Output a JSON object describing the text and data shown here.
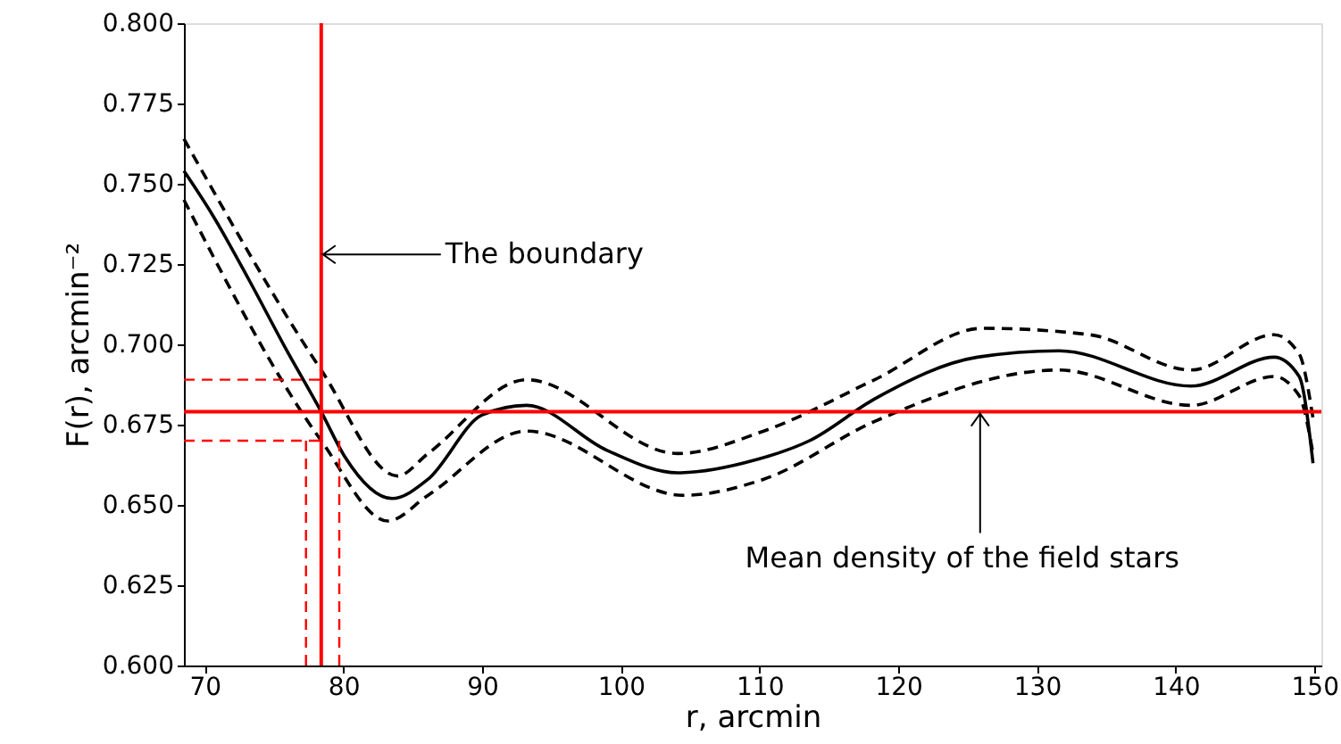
{
  "chart_data": {
    "type": "line",
    "xlabel": "r, arcmin",
    "ylabel": "F(r), arcmin⁻²",
    "xlim": [
      68.5,
      150.5
    ],
    "ylim": [
      0.6,
      0.8
    ],
    "xticks": [
      70,
      80,
      90,
      100,
      110,
      120,
      130,
      140,
      150
    ],
    "yticks": [
      {
        "value": 0.6,
        "label": "0.600"
      },
      0.625,
      {
        "value": 0.65,
        "label": "0.650"
      },
      0.675,
      {
        "value": 0.7,
        "label": "0.700"
      },
      0.725,
      {
        "value": 0.75,
        "label": "0.750"
      },
      0.775,
      {
        "value": 0.8,
        "label": "0.800"
      }
    ],
    "series": [
      {
        "color": "#000000",
        "line_style": "solid",
        "x": [
          68.5,
          70.6,
          73.2,
          75.8,
          78.4,
          80.1,
          83.5,
          86.1,
          90.0,
          93.2,
          99.0,
          104.1,
          109.7,
          113.6,
          118.3,
          125.7,
          131.6,
          141.1,
          147.1,
          148.9,
          149.9
        ],
        "values": [
          0.754,
          0.74,
          0.72,
          0.699,
          0.679,
          0.665,
          0.652,
          0.658,
          0.678,
          0.681,
          0.667,
          0.66,
          0.664,
          0.67,
          0.683,
          0.696,
          0.698,
          0.687,
          0.696,
          0.69,
          0.663
        ]
      },
      {
        "color": "#000000",
        "line_style": "dashed",
        "x": [
          68.5,
          78.4,
          83.9,
          86.1,
          93.2,
          104.1,
          110.3,
          118.3,
          126.1,
          133.8,
          141.1,
          147.1,
          148.9,
          149.9
        ],
        "values": [
          0.764,
          0.692,
          0.659,
          0.666,
          0.689,
          0.666,
          0.673,
          0.689,
          0.705,
          0.703,
          0.692,
          0.703,
          0.697,
          0.677
        ]
      },
      {
        "color": "#000000",
        "line_style": "dashed",
        "x": [
          68.5,
          78.4,
          83.2,
          86.1,
          93.2,
          104.5,
          110.3,
          118.3,
          131.6,
          141.1,
          147.1,
          148.9,
          149.9
        ],
        "values": [
          0.745,
          0.67,
          0.645,
          0.653,
          0.673,
          0.653,
          0.658,
          0.676,
          0.692,
          0.681,
          0.69,
          0.684,
          0.666
        ]
      }
    ],
    "ref_lines": [
      {
        "axis": "y",
        "value": 0.679,
        "color": "#ff0000",
        "line_style": "solid"
      },
      {
        "axis": "x",
        "value": 78.4,
        "color": "#ff0000",
        "line_style": "solid"
      },
      {
        "axis": "y",
        "value": 0.689,
        "color": "#ff0000",
        "line_style": "dashed"
      },
      {
        "axis": "y",
        "value": 0.67,
        "color": "#ff0000",
        "line_style": "dashed"
      },
      {
        "axis": "x",
        "value": 77.3,
        "color": "#ff0000",
        "line_style": "dashed"
      },
      {
        "axis": "x",
        "value": 79.7,
        "color": "#ff0000",
        "line_style": "dashed"
      }
    ],
    "annotations": [
      "The boundary",
      "Mean density of the field stars"
    ],
    "grid": false
  }
}
